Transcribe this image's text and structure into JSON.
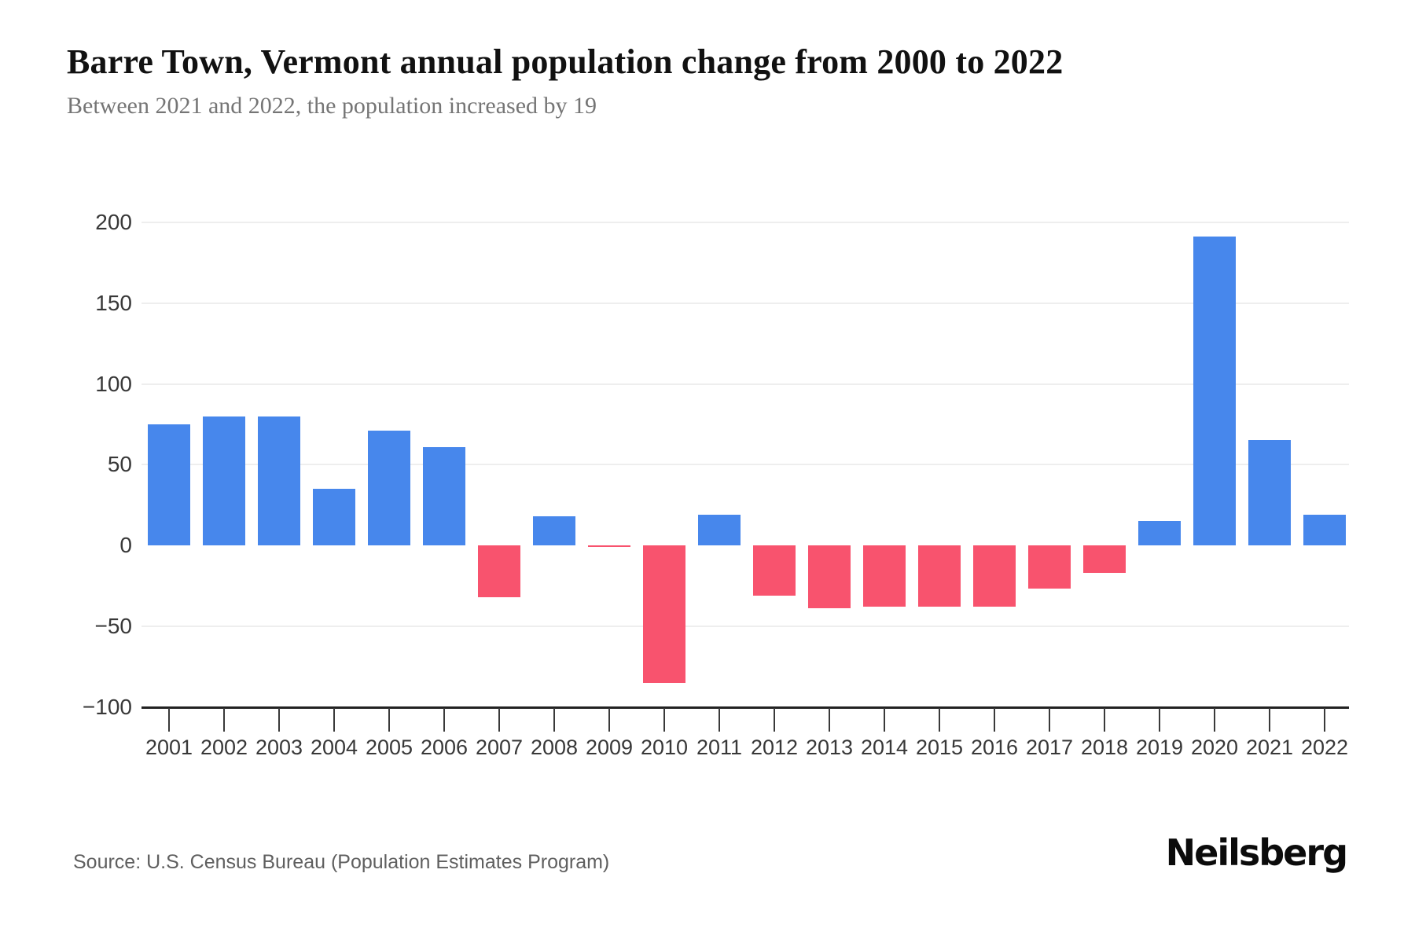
{
  "header": {
    "title": "Barre Town, Vermont annual population change from 2000 to 2022",
    "subtitle": "Between 2021 and 2022, the population increased by 19"
  },
  "footer": {
    "source": "Source: U.S. Census Bureau (Population Estimates Program)",
    "brand": "Neilsberg"
  },
  "chart_data": {
    "type": "bar",
    "title": "Barre Town, Vermont annual population change from 2000 to 2022",
    "subtitle": "Between 2021 and 2022, the population increased by 19",
    "categories": [
      "2001",
      "2002",
      "2003",
      "2004",
      "2005",
      "2006",
      "2007",
      "2008",
      "2009",
      "2010",
      "2011",
      "2012",
      "2013",
      "2014",
      "2015",
      "2016",
      "2017",
      "2018",
      "2019",
      "2020",
      "2021",
      "2022"
    ],
    "values": [
      75,
      80,
      80,
      35,
      71,
      61,
      -32,
      18,
      -1,
      -85,
      19,
      -31,
      -39,
      -38,
      -38,
      -38,
      -27,
      -17,
      15,
      191,
      65,
      19
    ],
    "xlabel": "",
    "ylabel": "",
    "ylim": [
      -100,
      200
    ],
    "yticks": [
      {
        "value": 200,
        "label": "200"
      },
      {
        "value": 150,
        "label": "150"
      },
      {
        "value": 100,
        "label": "100"
      },
      {
        "value": 50,
        "label": "50"
      },
      {
        "value": 0,
        "label": "0"
      },
      {
        "value": -50,
        "label": "−50"
      },
      {
        "value": -100,
        "label": "−100"
      }
    ],
    "grid": true,
    "legend_position": "none",
    "colors": {
      "positive": "#4787EC",
      "negative": "#F8536E"
    }
  }
}
